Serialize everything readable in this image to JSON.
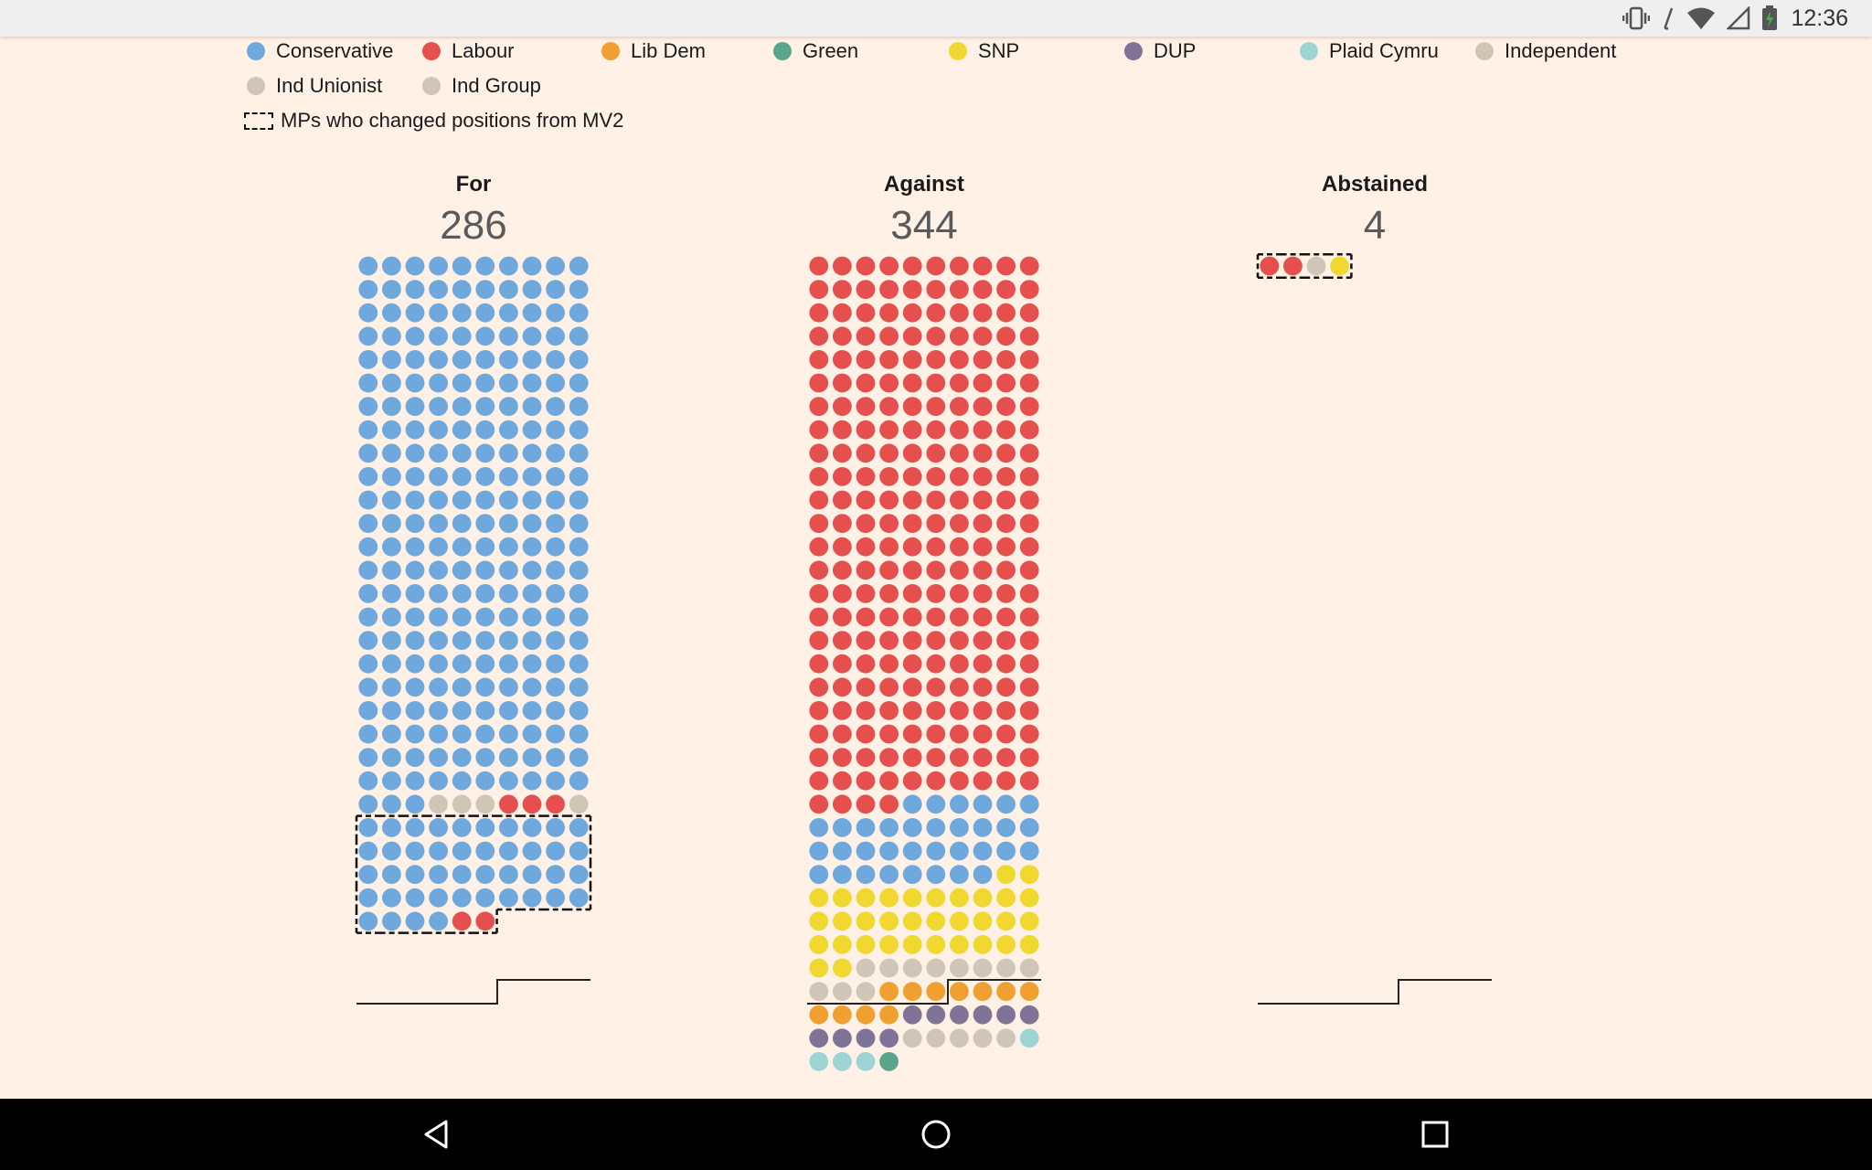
{
  "status_bar": {
    "time": "12:36",
    "icons": [
      "vibrate-icon",
      "signal-icon",
      "wifi-icon",
      "cellular-icon",
      "battery-charging-icon"
    ]
  },
  "legend": {
    "items": [
      {
        "label": "Conservative",
        "color": "#6fa8dc"
      },
      {
        "label": "Labour",
        "color": "#e5504f"
      },
      {
        "label": "Lib Dem",
        "color": "#f0a030"
      },
      {
        "label": "Green",
        "color": "#5aa58b"
      },
      {
        "label": "SNP",
        "color": "#f0d830"
      },
      {
        "label": "DUP",
        "color": "#7f7497"
      },
      {
        "label": "Plaid Cymru",
        "color": "#9fd4d4"
      },
      {
        "label": "Independent",
        "color": "#cfc6b8"
      },
      {
        "label": "Ind Unionist",
        "color": "#cfc6b8"
      },
      {
        "label": "Ind Group",
        "color": "#cfc6b8"
      }
    ],
    "changed_label": "MPs who changed positions from MV2"
  },
  "chart_data": {
    "type": "waffle",
    "dots_per_row": 10,
    "groups": [
      {
        "title": "For",
        "count": "286",
        "dots": [
          {
            "party": "Conservative",
            "n": 233
          },
          {
            "party": "Independent",
            "n": 3
          },
          {
            "party": "Labour",
            "n": 3
          },
          {
            "party": "Independent",
            "n": 1
          },
          {
            "party": "Conservative",
            "n": 44,
            "changed": true
          },
          {
            "party": "Labour",
            "n": 2,
            "changed": true
          }
        ]
      },
      {
        "title": "Against",
        "count": "344",
        "dots": [
          {
            "party": "Labour",
            "n": 234
          },
          {
            "party": "Conservative",
            "n": 34
          },
          {
            "party": "SNP",
            "n": 34
          },
          {
            "party": "Independent",
            "n": 11
          },
          {
            "party": "Lib Dem",
            "n": 11
          },
          {
            "party": "DUP",
            "n": 10
          },
          {
            "party": "Independent",
            "n": 5
          },
          {
            "party": "Plaid Cymru",
            "n": 4
          },
          {
            "party": "Green",
            "n": 1
          }
        ]
      },
      {
        "title": "Abstained",
        "count": "4",
        "dots": [
          {
            "party": "Labour",
            "n": 2,
            "changed": true
          },
          {
            "party": "Independent",
            "n": 1,
            "changed": true
          },
          {
            "party": "SNP",
            "n": 1,
            "changed": true
          }
        ]
      }
    ]
  }
}
